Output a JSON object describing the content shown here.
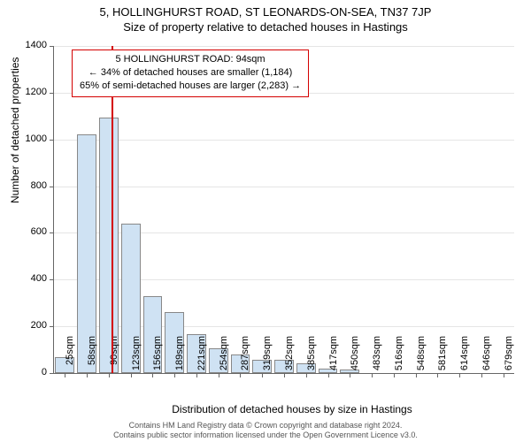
{
  "chart": {
    "type": "histogram",
    "title": "5, HOLLINGHURST ROAD, ST LEONARDS-ON-SEA, TN37 7JP",
    "subtitle": "Size of property relative to detached houses in Hastings",
    "y_axis_label": "Number of detached properties",
    "x_axis_label": "Distribution of detached houses by size in Hastings",
    "background_color": "#ffffff",
    "bar_fill": "#cfe2f3",
    "bar_border": "#888888",
    "axis_color": "#666666",
    "grid_color": "#e5e5e5",
    "marker_color": "#d40000",
    "y_min": 0,
    "y_max": 1400,
    "y_tick_step": 200,
    "y_ticks": [
      0,
      200,
      400,
      600,
      800,
      1000,
      1200,
      1400
    ],
    "x_ticks": [
      "25sqm",
      "58sqm",
      "90sqm",
      "123sqm",
      "156sqm",
      "189sqm",
      "221sqm",
      "254sqm",
      "287sqm",
      "319sqm",
      "352sqm",
      "385sqm",
      "417sqm",
      "450sqm",
      "483sqm",
      "516sqm",
      "548sqm",
      "581sqm",
      "614sqm",
      "646sqm",
      "679sqm"
    ],
    "values": [
      70,
      1020,
      1095,
      640,
      330,
      260,
      165,
      105,
      80,
      55,
      55,
      40,
      20,
      15,
      0,
      0,
      0,
      0,
      0,
      0,
      0
    ],
    "marker_value_sqm": 94,
    "x_domain_min": 25,
    "x_domain_max": 679,
    "infobox": {
      "line1": "5 HOLLINGHURST ROAD: 94sqm",
      "line2": "← 34% of detached houses are smaller (1,184)",
      "line3": "65% of semi-detached houses are larger (2,283) →"
    },
    "title_fontsize": 13,
    "tick_fontsize": 11,
    "axis_label_fontsize": 12
  },
  "footer": {
    "line1": "Contains HM Land Registry data © Crown copyright and database right 2024.",
    "line2": "Contains public sector information licensed under the Open Government Licence v3.0."
  }
}
